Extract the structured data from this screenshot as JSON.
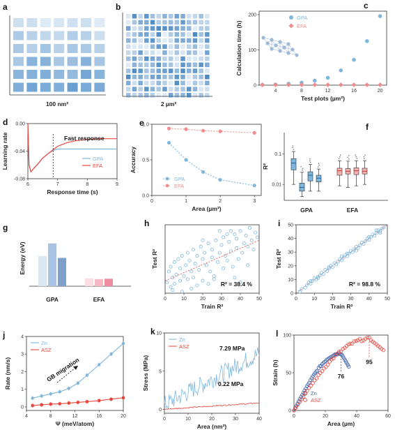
{
  "colors": {
    "blue": "#7fb6dc",
    "blue_dark": "#4a90c8",
    "red": "#e8453c",
    "pink": "#f08c8c",
    "grid_blue": "#2f7fbe"
  },
  "panels": [
    {
      "id": "a",
      "label": "a",
      "caption": "100 nm²",
      "grid": {
        "rows": 6,
        "cols": 7
      }
    },
    {
      "id": "b",
      "label": "b",
      "caption": "2 µm²",
      "grid": {
        "rows": 14,
        "cols": 14
      }
    }
  ],
  "chart_data": [
    {
      "id": "c",
      "label": "c",
      "type": "scatter",
      "xlabel": "Test plots (µm²)",
      "ylabel": "Calculation time (h)",
      "xlim": [
        1.5,
        21
      ],
      "ylim": [
        0,
        210
      ],
      "xticks": [
        4,
        8,
        12,
        16,
        20
      ],
      "yticks": [
        0,
        100,
        200
      ],
      "legend_position": "top-center",
      "series": [
        {
          "name": "GPA",
          "x": [
            2,
            4,
            6,
            8,
            10,
            12,
            14,
            16,
            18,
            20
          ],
          "y": [
            1,
            2,
            4,
            7,
            13,
            21,
            42,
            72,
            125,
            196
          ],
          "color": "#7fb6dc",
          "marker": "circle"
        },
        {
          "name": "EFA",
          "x": [
            2,
            4,
            6,
            8,
            10,
            12,
            14,
            16,
            18,
            20
          ],
          "y": [
            1,
            1,
            1,
            1,
            1,
            1,
            1,
            1,
            1,
            1
          ],
          "color": "#f08c8c",
          "marker": "diamond"
        }
      ]
    },
    {
      "id": "d",
      "label": "d",
      "type": "line",
      "xlabel": "Response time (s)",
      "ylabel": "Learning rate",
      "xlim": [
        6,
        9
      ],
      "ylim": [
        -0.08,
        0.0
      ],
      "xticks": [
        6,
        7,
        8,
        9
      ],
      "yticks": [
        0.0,
        -0.04,
        -0.08
      ],
      "ytick_labels": [
        "0.00",
        "-0.04",
        "-0.08"
      ],
      "annotation": "Fast response",
      "marker_x": 6.85,
      "legend_position": "bottom-right",
      "series": [
        {
          "name": "GPA",
          "x": [
            6.0,
            6.04,
            6.1,
            6.2,
            6.35,
            6.5,
            6.7,
            6.85,
            7.0,
            7.5,
            8.0,
            8.5,
            9.0
          ],
          "y": [
            0.0,
            -0.06,
            -0.07,
            -0.065,
            -0.058,
            -0.05,
            -0.043,
            -0.039,
            -0.037,
            -0.037,
            -0.037,
            -0.037,
            -0.037
          ],
          "color": "#7fb6dc"
        },
        {
          "name": "EFA",
          "x": [
            6.0,
            6.04,
            6.1,
            6.2,
            6.35,
            6.5,
            6.7,
            6.85,
            7.0,
            7.3,
            7.6,
            8.0,
            8.5,
            9.0
          ],
          "y": [
            0.0,
            -0.06,
            -0.07,
            -0.065,
            -0.058,
            -0.05,
            -0.043,
            -0.038,
            -0.033,
            -0.028,
            -0.025,
            -0.023,
            -0.022,
            -0.022
          ],
          "color": "#e8453c"
        }
      ]
    },
    {
      "id": "e",
      "label": "e",
      "type": "line",
      "xlabel": "Area (µm²)",
      "ylabel": "Accuracy",
      "xlim": [
        0,
        3.2
      ],
      "ylim": [
        0,
        1.0
      ],
      "xticks": [
        0,
        1,
        2,
        3
      ],
      "yticks": [
        0.0,
        0.5,
        1.0
      ],
      "ytick_labels": [
        "0.0",
        "0.5",
        "1.0"
      ],
      "legend_position": "bottom-left",
      "series": [
        {
          "name": "GPA",
          "x": [
            0.5,
            1.0,
            1.5,
            2.0,
            3.0
          ],
          "y": [
            0.74,
            0.5,
            0.33,
            0.22,
            0.14
          ],
          "color": "#7fb6dc"
        },
        {
          "name": "EFA",
          "x": [
            0.5,
            1.0,
            1.5,
            2.0,
            3.0
          ],
          "y": [
            0.94,
            0.93,
            0.91,
            0.9,
            0.88
          ],
          "color": "#f08c8c"
        }
      ]
    },
    {
      "id": "f",
      "label": "f",
      "type": "box",
      "ylabel": "R²",
      "ylim_log": [
        0.003,
        0.5
      ],
      "yticks": [
        0.01,
        0.1
      ],
      "ytick_labels": [
        "0.01",
        "0.1"
      ],
      "groups": [
        {
          "name": "GPA",
          "boxes": [
            {
              "q1": 0.03,
              "med": 0.05,
              "q3": 0.07,
              "lo": 0.01,
              "hi": 0.12,
              "color": "#7fb6dc"
            },
            {
              "q1": 0.006,
              "med": 0.008,
              "q3": 0.011,
              "lo": 0.004,
              "hi": 0.025,
              "color": "#7fb6dc"
            },
            {
              "q1": 0.013,
              "med": 0.02,
              "q3": 0.026,
              "lo": 0.006,
              "hi": 0.045,
              "color": "#7fb6dc"
            },
            {
              "q1": 0.012,
              "med": 0.016,
              "q3": 0.02,
              "lo": 0.006,
              "hi": 0.032,
              "color": "#7fb6dc"
            }
          ]
        },
        {
          "name": "EFA",
          "boxes": [
            {
              "q1": 0.02,
              "med": 0.028,
              "q3": 0.034,
              "lo": 0.009,
              "hi": 0.06,
              "color": "#f5b0b0"
            },
            {
              "q1": 0.022,
              "med": 0.027,
              "q3": 0.033,
              "lo": 0.008,
              "hi": 0.058,
              "color": "#f5b0b0"
            },
            {
              "q1": 0.021,
              "med": 0.028,
              "q3": 0.035,
              "lo": 0.009,
              "hi": 0.06,
              "color": "#f5b0b0"
            },
            {
              "q1": 0.022,
              "med": 0.027,
              "q3": 0.034,
              "lo": 0.01,
              "hi": 0.06,
              "color": "#f5b0b0"
            }
          ]
        }
      ]
    },
    {
      "id": "g",
      "label": "g",
      "type": "bar",
      "ylabel": "Energy (eV)",
      "ylim": [
        0,
        3.0
      ],
      "categories": [
        "GPA",
        "EFA"
      ],
      "series": [
        {
          "values": [
            1.62,
            0.42
          ],
          "colors": [
            "#dbe6f3",
            "#fbdde3"
          ]
        },
        {
          "values": [
            2.3,
            0.38
          ],
          "colors": [
            "#a8c3e3",
            "#f6b9c4"
          ]
        },
        {
          "values": [
            1.52,
            0.4
          ],
          "colors": [
            "#7fa0c9",
            "#ef8da0"
          ]
        }
      ]
    },
    {
      "id": "h",
      "label": "h",
      "type": "scatter",
      "xlabel": "Train R²",
      "ylabel": "Test R²",
      "xlim": [
        0,
        50
      ],
      "ylim": [
        -12,
        32
      ],
      "xticks": [
        0,
        10,
        20,
        30,
        40,
        50
      ],
      "yticks": [],
      "annotation": "R² = 38.4 %",
      "series": [
        {
          "x": [
            1,
            2,
            3,
            3,
            4,
            5,
            5,
            6,
            7,
            8,
            8,
            9,
            10,
            11,
            12,
            12,
            13,
            14,
            15,
            15,
            16,
            17,
            18,
            19,
            20,
            20,
            21,
            22,
            23,
            24,
            25,
            25,
            26,
            27,
            28,
            29,
            30,
            31,
            31,
            32,
            33,
            34,
            35,
            36,
            37,
            38,
            38,
            39,
            40,
            41,
            42,
            43,
            44,
            45,
            46,
            47,
            48,
            49,
            14,
            20,
            26,
            33,
            40,
            9,
            17,
            29,
            37,
            44,
            4,
            23,
            35
          ],
          "y": [
            -5,
            2,
            -8,
            5,
            -2,
            8,
            -6,
            0,
            10,
            -4,
            4,
            12,
            -1,
            6,
            14,
            -3,
            9,
            2,
            16,
            -2,
            7,
            12,
            3,
            18,
            10,
            -4,
            14,
            6,
            20,
            2,
            11,
            16,
            -1,
            22,
            8,
            14,
            19,
            4,
            24,
            12,
            9,
            21,
            15,
            5,
            26,
            17,
            23,
            10,
            28,
            14,
            20,
            25,
            18,
            30,
            22,
            16,
            27,
            24,
            -9,
            22,
            -3,
            26,
            -5,
            -11,
            -7,
            28,
            -2,
            6,
            -10,
            -6,
            28
          ],
          "color": "#7fb6dc"
        }
      ],
      "fit": [
        [
          0,
          -4
        ],
        [
          50,
          22
        ]
      ]
    },
    {
      "id": "i",
      "label": "i",
      "type": "scatter",
      "xlabel": "Train R²",
      "ylabel": "Test R²",
      "xlim": [
        0,
        50
      ],
      "ylim": [
        0,
        50
      ],
      "xticks": [
        0,
        10,
        20,
        30,
        40,
        50
      ],
      "yticks": [
        0,
        10,
        20,
        30,
        40,
        50
      ],
      "annotation": "R² = 98.8 %",
      "series": [
        {
          "x": [
            2,
            3,
            5,
            6,
            7,
            8,
            9,
            10,
            11,
            12,
            13,
            14,
            15,
            16,
            17,
            18,
            19,
            20,
            21,
            22,
            23,
            24,
            25,
            26,
            27,
            28,
            29,
            30,
            31,
            32,
            33,
            34,
            35,
            36,
            37,
            38,
            39,
            40,
            41,
            42,
            43,
            44,
            45,
            46,
            47,
            48,
            12,
            18,
            25,
            33,
            40,
            8,
            28,
            44,
            46
          ],
          "y": [
            1,
            3,
            4,
            6,
            8,
            7,
            9,
            11,
            10,
            12,
            13,
            15,
            14,
            17,
            16,
            18,
            20,
            19,
            22,
            21,
            23,
            25,
            24,
            26,
            28,
            27,
            29,
            31,
            30,
            32,
            34,
            33,
            35,
            37,
            36,
            38,
            40,
            39,
            41,
            43,
            42,
            44,
            46,
            45,
            47,
            48,
            11,
            19,
            27,
            31,
            41,
            9,
            29,
            46,
            44
          ],
          "color": "#7fb6dc"
        }
      ],
      "fit": [
        [
          0,
          0
        ],
        [
          50,
          50
        ]
      ]
    },
    {
      "id": "j",
      "label": "j",
      "type": "line",
      "xlabel": "Ψ (meV/atom)",
      "ylabel": "Rate (nm/s)",
      "xlim": [
        4,
        20
      ],
      "ylim": [
        -0.2,
        4.0
      ],
      "xticks": [
        4,
        8,
        12,
        16,
        20
      ],
      "yticks": [
        0,
        1,
        2,
        3,
        4
      ],
      "annotation": "GB migration",
      "legend_position": "top-left",
      "series": [
        {
          "name": "Zn",
          "x": [
            5,
            6.5,
            8,
            9.5,
            11,
            12.5,
            14,
            16,
            18,
            20
          ],
          "y": [
            0.5,
            0.62,
            0.74,
            0.86,
            1.05,
            1.35,
            1.8,
            2.4,
            3.0,
            3.6
          ],
          "color": "#7fb6dc",
          "marker": "circle"
        },
        {
          "name": "ASZ",
          "x": [
            5,
            6.5,
            8,
            9.5,
            11,
            12.5,
            14,
            16,
            18,
            20
          ],
          "y": [
            0.08,
            0.12,
            0.16,
            0.18,
            0.22,
            0.26,
            0.3,
            0.36,
            0.44,
            0.52
          ],
          "color": "#e8453c",
          "marker": "square"
        }
      ]
    },
    {
      "id": "k",
      "label": "k",
      "type": "line",
      "xlabel": "Area (nm²)",
      "ylabel": "Stress (MPa)",
      "xlim": [
        0,
        40
      ],
      "ylim": [
        -0.5,
        10
      ],
      "xticks": [
        0,
        10,
        20,
        30,
        40
      ],
      "yticks": [
        0,
        5,
        10
      ],
      "annotations": [
        "7.29 MPa",
        "0.22 MPa"
      ],
      "legend_position": "top-left",
      "series": [
        {
          "name": "Zn",
          "color": "#7fb6dc",
          "trend": [
            [
              0,
              0.6
            ],
            [
              40,
              7.3
            ]
          ],
          "noise": 1.2
        },
        {
          "name": "ASZ",
          "color": "#e8453c",
          "trend": [
            [
              0,
              0.02
            ],
            [
              40,
              0.85
            ]
          ],
          "noise": 0.08
        }
      ]
    },
    {
      "id": "l",
      "label": "l",
      "type": "scatter",
      "xlabel": "Area (µm)",
      "ylabel": "Strain (h)",
      "xlim": [
        0,
        60
      ],
      "ylim": [
        0,
        100
      ],
      "xticks": [
        0,
        20,
        40,
        60
      ],
      "yticks": [
        0,
        50,
        100
      ],
      "annotations": [
        "76",
        "95"
      ],
      "legend_position": "bottom-left",
      "series": [
        {
          "name": "Zn",
          "color": "#3b5fae",
          "peak_x": 30,
          "peak_y": 76,
          "end_x": 35,
          "end_y": 58
        },
        {
          "name": "ASZ",
          "color": "#e8453c",
          "peak_x": 48,
          "peak_y": 95,
          "end_x": 57,
          "end_y": 80
        }
      ]
    }
  ]
}
